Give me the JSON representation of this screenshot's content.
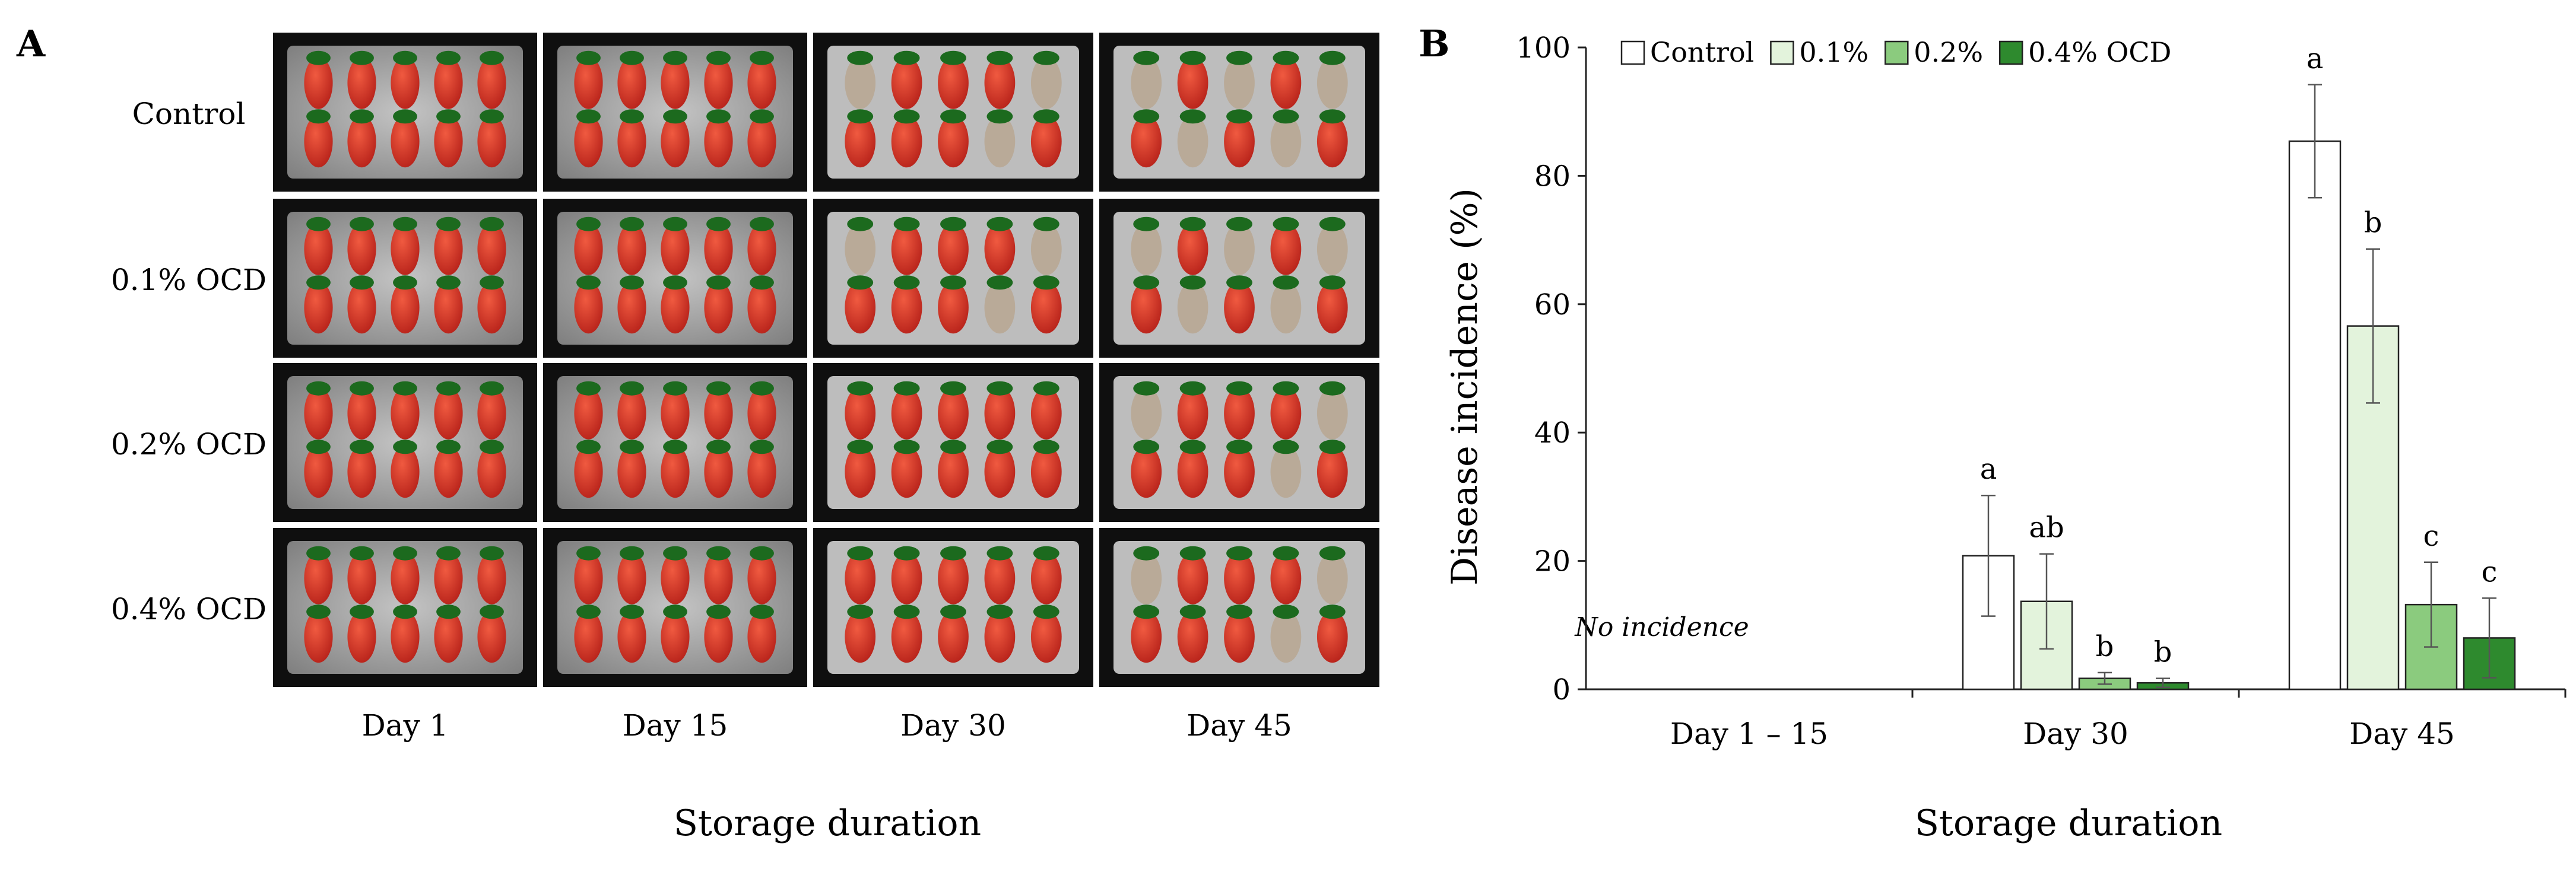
{
  "panel_a": {
    "letter": "A",
    "rows": [
      "Control",
      "0.1% OCD",
      "0.2% OCD",
      "0.4% OCD"
    ],
    "columns": [
      "Day 1",
      "Day 15",
      "Day 30",
      "Day 45"
    ],
    "xlabel": "Storage duration",
    "photo_state": [
      [
        "fresh",
        "fresh",
        "moldy",
        "rotten"
      ],
      [
        "fresh",
        "fresh",
        "moldy",
        "rotten"
      ],
      [
        "fresh",
        "fresh",
        "fresh",
        "moldy"
      ],
      [
        "fresh",
        "fresh",
        "fresh",
        "moldy"
      ]
    ],
    "colors": {
      "tray": "#0f0f0f",
      "foam_dark": "#6b6b6b",
      "foam_light": "#bdbdbd",
      "berry": "#d83a2a",
      "berry_moldy": "#b9aa98",
      "calyx": "#1c6a1e"
    }
  },
  "panel_b": {
    "letter": "B",
    "note": "No incidence",
    "chart_data": {
      "type": "bar",
      "categories": [
        "Day 1 – 15",
        "Day 30",
        "Day 45"
      ],
      "series": [
        {
          "name": "Control",
          "values": [
            0,
            20.8,
            85.4
          ],
          "errors": [
            0,
            9.4,
            8.8
          ],
          "letters": [
            "",
            "a",
            "a"
          ],
          "color": "#ffffff"
        },
        {
          "name": "0.1%",
          "values": [
            0,
            13.7,
            56.6
          ],
          "errors": [
            0,
            7.4,
            12.0
          ],
          "letters": [
            "",
            "ab",
            "b"
          ],
          "color": "#e3f3dc"
        },
        {
          "name": "0.2%",
          "values": [
            0,
            1.7,
            13.2
          ],
          "errors": [
            0,
            0.9,
            6.6
          ],
          "letters": [
            "",
            "b",
            "c"
          ],
          "color": "#8bcb7e"
        },
        {
          "name": "0.4% OCD",
          "values": [
            0,
            1.0,
            8.0
          ],
          "errors": [
            0,
            0.7,
            6.2
          ],
          "letters": [
            "",
            "b",
            "c"
          ],
          "color": "#2e8a2e"
        }
      ],
      "xlabel": "Storage duration",
      "ylabel": "Disease incidence  (%)",
      "ylim": [
        0,
        100
      ],
      "yticks": [
        0,
        20,
        40,
        60,
        80,
        100
      ],
      "grid": false,
      "legend": "top"
    }
  }
}
